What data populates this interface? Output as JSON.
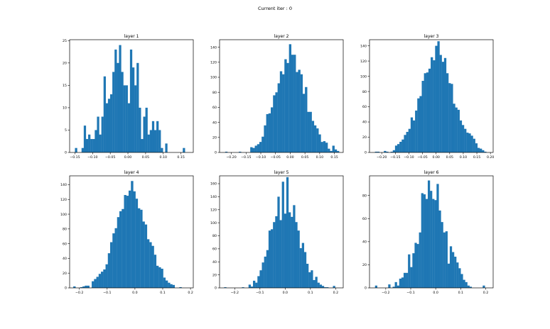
{
  "suptitle": "Current iter : 0",
  "chart_data": [
    {
      "type": "bar",
      "title": "layer 1",
      "xlim": [
        -0.165,
        0.185
      ],
      "ylim": [
        0,
        25.2
      ],
      "xticks": [
        -0.15,
        -0.1,
        -0.05,
        0.0,
        0.05,
        0.1,
        0.15
      ],
      "xtick_labels": [
        "−0.15",
        "−0.10",
        "−0.05",
        "0.00",
        "0.05",
        "0.10",
        "0.15"
      ],
      "yticks": [
        0,
        5,
        10,
        15,
        20,
        25
      ],
      "ytick_labels": [
        "0",
        "5",
        "10",
        "15",
        "20",
        "25"
      ],
      "bin_start": -0.15,
      "bin_width": 0.00623,
      "values": [
        1,
        0,
        0,
        1,
        6,
        3,
        4,
        3,
        3,
        5,
        8,
        4,
        8,
        17,
        11,
        12,
        13,
        18,
        23,
        20,
        24,
        18,
        15,
        15,
        11,
        23,
        19,
        15,
        20,
        10,
        3,
        8,
        10,
        4,
        5,
        7,
        5,
        7,
        5,
        1,
        0,
        2,
        0,
        0,
        0,
        0,
        0,
        0,
        0,
        1
      ]
    },
    {
      "type": "bar",
      "title": "layer 2",
      "xlim": [
        -0.24,
        0.18
      ],
      "ylim": [
        0,
        150
      ],
      "xticks": [
        -0.2,
        -0.15,
        -0.1,
        -0.05,
        0.0,
        0.05,
        0.1,
        0.15
      ],
      "xtick_labels": [
        "−0.20",
        "−0.15",
        "−0.10",
        "−0.05",
        "0.00",
        "0.05",
        "0.10",
        "0.15"
      ],
      "yticks": [
        0,
        20,
        40,
        60,
        80,
        100,
        120,
        140
      ],
      "ytick_labels": [
        "0",
        "20",
        "40",
        "60",
        "80",
        "100",
        "120",
        "140"
      ],
      "bin_start": -0.221,
      "bin_width": 0.00774,
      "values": [
        1,
        0,
        0,
        0,
        0,
        0,
        1,
        0,
        0,
        0,
        0,
        7,
        6,
        9,
        11,
        14,
        21,
        36,
        51,
        52,
        60,
        76,
        80,
        92,
        108,
        104,
        124,
        119,
        144,
        130,
        130,
        107,
        110,
        104,
        78,
        87,
        54,
        54,
        42,
        36,
        32,
        24,
        14,
        15,
        13,
        5,
        2,
        9,
        4,
        2
      ]
    },
    {
      "type": "bar",
      "title": "layer 3",
      "xlim": [
        -0.245,
        0.21
      ],
      "ylim": [
        0,
        148
      ],
      "xticks": [
        -0.2,
        -0.15,
        -0.1,
        -0.05,
        0.0,
        0.05,
        0.1,
        0.15,
        0.2
      ],
      "xtick_labels": [
        "−0.20",
        "−0.15",
        "−0.10",
        "−0.05",
        "0.00",
        "0.05",
        "0.10",
        "0.15",
        "0.20"
      ],
      "yticks": [
        0,
        20,
        40,
        60,
        80,
        100,
        120,
        140
      ],
      "ytick_labels": [
        "0",
        "20",
        "40",
        "60",
        "80",
        "100",
        "120",
        "140"
      ],
      "bin_start": -0.225,
      "bin_width": 0.0082,
      "values": [
        1,
        1,
        0,
        0,
        2,
        1,
        0,
        1,
        3,
        9,
        11,
        14,
        17,
        23,
        27,
        31,
        46,
        42,
        55,
        71,
        74,
        94,
        104,
        105,
        110,
        125,
        121,
        140,
        146,
        128,
        119,
        124,
        104,
        91,
        90,
        64,
        59,
        56,
        42,
        36,
        31,
        26,
        25,
        22,
        18,
        12,
        6,
        5,
        3,
        1
      ]
    },
    {
      "type": "bar",
      "title": "layer 4",
      "xlim": [
        -0.235,
        0.21
      ],
      "ylim": [
        0,
        152
      ],
      "xticks": [
        -0.2,
        -0.1,
        0.0,
        0.1,
        0.2
      ],
      "xtick_labels": [
        "−0.2",
        "−0.1",
        "0.0",
        "0.1",
        "0.2"
      ],
      "yticks": [
        0,
        20,
        40,
        60,
        80,
        100,
        120,
        140
      ],
      "ytick_labels": [
        "0",
        "20",
        "40",
        "60",
        "80",
        "100",
        "120",
        "140"
      ],
      "bin_start": -0.222,
      "bin_width": 0.0083,
      "values": [
        2,
        0,
        0,
        1,
        2,
        3,
        3,
        0,
        9,
        12,
        15,
        19,
        22,
        25,
        32,
        47,
        62,
        74,
        81,
        96,
        104,
        107,
        126,
        125,
        132,
        145,
        131,
        121,
        108,
        106,
        90,
        86,
        66,
        62,
        57,
        45,
        30,
        28,
        26,
        14,
        10,
        7,
        5,
        4,
        0,
        0,
        1,
        0,
        0,
        0
      ]
    },
    {
      "type": "bar",
      "title": "layer 5",
      "xlim": [
        -0.26,
        0.23
      ],
      "ylim": [
        0,
        172
      ],
      "xticks": [
        -0.2,
        -0.1,
        0.0,
        0.1,
        0.2
      ],
      "xtick_labels": [
        "−0.2",
        "−0.1",
        "0.0",
        "0.1",
        "0.2"
      ],
      "yticks": [
        0,
        20,
        40,
        60,
        80,
        100,
        120,
        140,
        160
      ],
      "ytick_labels": [
        "0",
        "20",
        "40",
        "60",
        "80",
        "100",
        "120",
        "140",
        "160"
      ],
      "bin_start": -0.242,
      "bin_width": 0.0088,
      "values": [
        1,
        0,
        0,
        0,
        0,
        0,
        0,
        0,
        1,
        0,
        0,
        5,
        2,
        11,
        8,
        18,
        27,
        39,
        48,
        58,
        88,
        90,
        101,
        110,
        140,
        104,
        163,
        114,
        170,
        116,
        109,
        127,
        101,
        88,
        61,
        69,
        55,
        37,
        24,
        27,
        12,
        17,
        8,
        5,
        3,
        1,
        1,
        0,
        0,
        3
      ]
    },
    {
      "type": "bar",
      "title": "layer 6",
      "xlim": [
        -0.265,
        0.23
      ],
      "ylim": [
        0,
        97
      ],
      "xticks": [
        -0.2,
        -0.1,
        0.0,
        0.1,
        0.2
      ],
      "xtick_labels": [
        "−0.2",
        "−0.1",
        "0.0",
        "0.1",
        "0.2"
      ],
      "yticks": [
        0,
        20,
        40,
        60,
        80
      ],
      "ytick_labels": [
        "0",
        "20",
        "40",
        "60",
        "80"
      ],
      "bin_start": -0.243,
      "bin_width": 0.0088,
      "values": [
        2,
        0,
        0,
        0,
        0,
        0,
        3,
        0,
        1,
        5,
        2,
        8,
        9,
        13,
        13,
        29,
        18,
        30,
        39,
        38,
        48,
        82,
        81,
        77,
        93,
        84,
        77,
        76,
        90,
        67,
        57,
        48,
        49,
        21,
        36,
        31,
        27,
        22,
        17,
        12,
        7,
        5,
        2,
        1,
        0,
        0,
        0,
        0,
        0,
        2
      ]
    }
  ]
}
